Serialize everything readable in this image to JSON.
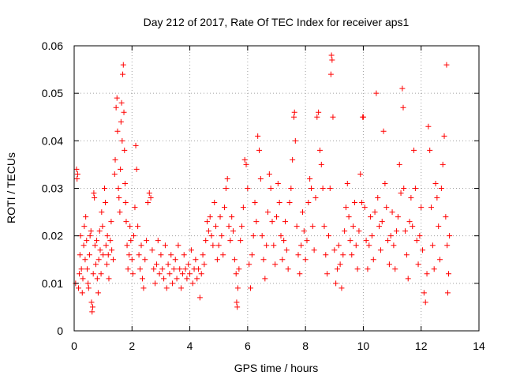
{
  "chart_data": {
    "type": "scatter",
    "title": "Day 212 of 2017, Rate Of TEC Index for receiver aps1",
    "xlabel": "GPS time / hours",
    "ylabel": "ROTI / TECUs",
    "xlim": [
      0,
      14
    ],
    "ylim": [
      0,
      0.06
    ],
    "x_ticks": [
      0,
      2,
      4,
      6,
      8,
      10,
      12,
      14
    ],
    "x_tick_labels": [
      "0",
      "2",
      "4",
      "6",
      "8",
      "10",
      "12",
      "14"
    ],
    "y_ticks": [
      0,
      0.01,
      0.02,
      0.03,
      0.04,
      0.05,
      0.06
    ],
    "y_tick_labels": [
      "0",
      "0.01",
      "0.02",
      "0.03",
      "0.04",
      "0.05",
      "0.06"
    ],
    "grid": true,
    "marker": "plus",
    "color": "#ff0000",
    "series": [
      {
        "name": "ROTI",
        "points": [
          [
            0.05,
            0.01
          ],
          [
            0.08,
            0.034
          ],
          [
            0.1,
            0.032
          ],
          [
            0.12,
            0.033
          ],
          [
            0.15,
            0.009
          ],
          [
            0.18,
            0.012
          ],
          [
            0.2,
            0.016
          ],
          [
            0.22,
            0.02
          ],
          [
            0.25,
            0.013
          ],
          [
            0.28,
            0.008
          ],
          [
            0.3,
            0.011
          ],
          [
            0.33,
            0.018
          ],
          [
            0.35,
            0.022
          ],
          [
            0.38,
            0.015
          ],
          [
            0.4,
            0.024
          ],
          [
            0.43,
            0.019
          ],
          [
            0.45,
            0.013
          ],
          [
            0.48,
            0.01
          ],
          [
            0.5,
            0.009
          ],
          [
            0.53,
            0.016
          ],
          [
            0.55,
            0.02
          ],
          [
            0.58,
            0.021
          ],
          [
            0.6,
            0.006
          ],
          [
            0.62,
            0.004
          ],
          [
            0.64,
            0.005
          ],
          [
            0.66,
            0.012
          ],
          [
            0.68,
            0.029
          ],
          [
            0.7,
            0.028
          ],
          [
            0.72,
            0.018
          ],
          [
            0.75,
            0.014
          ],
          [
            0.78,
            0.019
          ],
          [
            0.8,
            0.011
          ],
          [
            0.83,
            0.008
          ],
          [
            0.85,
            0.015
          ],
          [
            0.88,
            0.021
          ],
          [
            0.9,
            0.017
          ],
          [
            0.93,
            0.012
          ],
          [
            0.95,
            0.025
          ],
          [
            0.98,
            0.022
          ],
          [
            1.0,
            0.016
          ],
          [
            1.05,
            0.03
          ],
          [
            1.08,
            0.027
          ],
          [
            1.1,
            0.018
          ],
          [
            1.13,
            0.014
          ],
          [
            1.15,
            0.02
          ],
          [
            1.18,
            0.016
          ],
          [
            1.2,
            0.011
          ],
          [
            1.25,
            0.019
          ],
          [
            1.28,
            0.023
          ],
          [
            1.3,
            0.017
          ],
          [
            1.35,
            0.015
          ],
          [
            1.4,
            0.033
          ],
          [
            1.42,
            0.036
          ],
          [
            1.45,
            0.047
          ],
          [
            1.48,
            0.049
          ],
          [
            1.5,
            0.042
          ],
          [
            1.53,
            0.03
          ],
          [
            1.55,
            0.028
          ],
          [
            1.58,
            0.025
          ],
          [
            1.6,
            0.034
          ],
          [
            1.62,
            0.044
          ],
          [
            1.64,
            0.048
          ],
          [
            1.66,
            0.04
          ],
          [
            1.68,
            0.054
          ],
          [
            1.7,
            0.056
          ],
          [
            1.72,
            0.046
          ],
          [
            1.74,
            0.038
          ],
          [
            1.76,
            0.031
          ],
          [
            1.78,
            0.027
          ],
          [
            1.8,
            0.023
          ],
          [
            1.83,
            0.018
          ],
          [
            1.86,
            0.013
          ],
          [
            1.9,
            0.016
          ],
          [
            1.93,
            0.022
          ],
          [
            1.96,
            0.019
          ],
          [
            2.0,
            0.015
          ],
          [
            2.03,
            0.012
          ],
          [
            2.06,
            0.02
          ],
          [
            2.1,
            0.026
          ],
          [
            2.13,
            0.039
          ],
          [
            2.16,
            0.034
          ],
          [
            2.2,
            0.022
          ],
          [
            2.24,
            0.016
          ],
          [
            2.28,
            0.013
          ],
          [
            2.32,
            0.018
          ],
          [
            2.36,
            0.011
          ],
          [
            2.4,
            0.009
          ],
          [
            2.45,
            0.015
          ],
          [
            2.5,
            0.019
          ],
          [
            2.55,
            0.027
          ],
          [
            2.6,
            0.029
          ],
          [
            2.65,
            0.028
          ],
          [
            2.7,
            0.017
          ],
          [
            2.75,
            0.013
          ],
          [
            2.8,
            0.01
          ],
          [
            2.85,
            0.014
          ],
          [
            2.9,
            0.019
          ],
          [
            2.95,
            0.012
          ],
          [
            3.0,
            0.016
          ],
          [
            3.05,
            0.013
          ],
          [
            3.1,
            0.011
          ],
          [
            3.15,
            0.018
          ],
          [
            3.2,
            0.009
          ],
          [
            3.25,
            0.014
          ],
          [
            3.3,
            0.012
          ],
          [
            3.35,
            0.016
          ],
          [
            3.4,
            0.01
          ],
          [
            3.45,
            0.013
          ],
          [
            3.5,
            0.015
          ],
          [
            3.55,
            0.011
          ],
          [
            3.6,
            0.018
          ],
          [
            3.65,
            0.013
          ],
          [
            3.7,
            0.009
          ],
          [
            3.75,
            0.012
          ],
          [
            3.8,
            0.016
          ],
          [
            3.85,
            0.013
          ],
          [
            3.9,
            0.011
          ],
          [
            3.95,
            0.014
          ],
          [
            4.0,
            0.012
          ],
          [
            4.05,
            0.017
          ],
          [
            4.1,
            0.01
          ],
          [
            4.15,
            0.013
          ],
          [
            4.2,
            0.015
          ],
          [
            4.25,
            0.011
          ],
          [
            4.3,
            0.013
          ],
          [
            4.35,
            0.007
          ],
          [
            4.4,
            0.012
          ],
          [
            4.45,
            0.016
          ],
          [
            4.5,
            0.014
          ],
          [
            4.55,
            0.019
          ],
          [
            4.6,
            0.023
          ],
          [
            4.65,
            0.021
          ],
          [
            4.7,
            0.024
          ],
          [
            4.75,
            0.02
          ],
          [
            4.8,
            0.018
          ],
          [
            4.85,
            0.027
          ],
          [
            4.9,
            0.022
          ],
          [
            4.95,
            0.015
          ],
          [
            5.0,
            0.018
          ],
          [
            5.05,
            0.024
          ],
          [
            5.1,
            0.02
          ],
          [
            5.15,
            0.016
          ],
          [
            5.2,
            0.026
          ],
          [
            5.25,
            0.03
          ],
          [
            5.3,
            0.032
          ],
          [
            5.35,
            0.022
          ],
          [
            5.4,
            0.019
          ],
          [
            5.45,
            0.024
          ],
          [
            5.5,
            0.021
          ],
          [
            5.55,
            0.015
          ],
          [
            5.6,
            0.012
          ],
          [
            5.62,
            0.006
          ],
          [
            5.64,
            0.005
          ],
          [
            5.66,
            0.009
          ],
          [
            5.7,
            0.013
          ],
          [
            5.75,
            0.019
          ],
          [
            5.8,
            0.022
          ],
          [
            5.85,
            0.026
          ],
          [
            5.9,
            0.036
          ],
          [
            5.95,
            0.035
          ],
          [
            6.0,
            0.03
          ],
          [
            6.05,
            0.014
          ],
          [
            6.1,
            0.009
          ],
          [
            6.15,
            0.016
          ],
          [
            6.2,
            0.02
          ],
          [
            6.25,
            0.027
          ],
          [
            6.3,
            0.023
          ],
          [
            6.35,
            0.041
          ],
          [
            6.4,
            0.038
          ],
          [
            6.45,
            0.032
          ],
          [
            6.5,
            0.02
          ],
          [
            6.55,
            0.015
          ],
          [
            6.6,
            0.011
          ],
          [
            6.65,
            0.018
          ],
          [
            6.7,
            0.025
          ],
          [
            6.75,
            0.033
          ],
          [
            6.8,
            0.03
          ],
          [
            6.85,
            0.023
          ],
          [
            6.9,
            0.018
          ],
          [
            6.95,
            0.014
          ],
          [
            7.0,
            0.024
          ],
          [
            7.05,
            0.031
          ],
          [
            7.1,
            0.027
          ],
          [
            7.15,
            0.02
          ],
          [
            7.2,
            0.015
          ],
          [
            7.25,
            0.019
          ],
          [
            7.3,
            0.023
          ],
          [
            7.35,
            0.017
          ],
          [
            7.4,
            0.013
          ],
          [
            7.45,
            0.027
          ],
          [
            7.5,
            0.03
          ],
          [
            7.55,
            0.036
          ],
          [
            7.6,
            0.045
          ],
          [
            7.62,
            0.046
          ],
          [
            7.65,
            0.04
          ],
          [
            7.7,
            0.022
          ],
          [
            7.75,
            0.016
          ],
          [
            7.8,
            0.012
          ],
          [
            7.85,
            0.018
          ],
          [
            7.9,
            0.025
          ],
          [
            7.95,
            0.021
          ],
          [
            8.0,
            0.015
          ],
          [
            8.05,
            0.019
          ],
          [
            8.1,
            0.027
          ],
          [
            8.15,
            0.032
          ],
          [
            8.2,
            0.03
          ],
          [
            8.25,
            0.022
          ],
          [
            8.3,
            0.017
          ],
          [
            8.35,
            0.028
          ],
          [
            8.4,
            0.045
          ],
          [
            8.45,
            0.046
          ],
          [
            8.5,
            0.038
          ],
          [
            8.55,
            0.035
          ],
          [
            8.6,
            0.03
          ],
          [
            8.65,
            0.022
          ],
          [
            8.7,
            0.016
          ],
          [
            8.75,
            0.012
          ],
          [
            8.8,
            0.02
          ],
          [
            8.85,
            0.03
          ],
          [
            8.88,
            0.054
          ],
          [
            8.9,
            0.058
          ],
          [
            8.92,
            0.057
          ],
          [
            8.95,
            0.045
          ],
          [
            9.0,
            0.017
          ],
          [
            9.05,
            0.01
          ],
          [
            9.1,
            0.013
          ],
          [
            9.15,
            0.018
          ],
          [
            9.2,
            0.014
          ],
          [
            9.25,
            0.009
          ],
          [
            9.3,
            0.016
          ],
          [
            9.35,
            0.021
          ],
          [
            9.4,
            0.026
          ],
          [
            9.45,
            0.031
          ],
          [
            9.5,
            0.024
          ],
          [
            9.55,
            0.019
          ],
          [
            9.6,
            0.016
          ],
          [
            9.65,
            0.022
          ],
          [
            9.7,
            0.027
          ],
          [
            9.75,
            0.018
          ],
          [
            9.8,
            0.013
          ],
          [
            9.85,
            0.021
          ],
          [
            9.9,
            0.033
          ],
          [
            9.95,
            0.027
          ],
          [
            9.98,
            0.045
          ],
          [
            10.0,
            0.045
          ],
          [
            10.05,
            0.026
          ],
          [
            10.1,
            0.019
          ],
          [
            10.15,
            0.013
          ],
          [
            10.2,
            0.018
          ],
          [
            10.25,
            0.024
          ],
          [
            10.3,
            0.02
          ],
          [
            10.35,
            0.015
          ],
          [
            10.4,
            0.025
          ],
          [
            10.45,
            0.05
          ],
          [
            10.5,
            0.028
          ],
          [
            10.55,
            0.022
          ],
          [
            10.6,
            0.017
          ],
          [
            10.65,
            0.023
          ],
          [
            10.7,
            0.042
          ],
          [
            10.75,
            0.031
          ],
          [
            10.8,
            0.026
          ],
          [
            10.85,
            0.019
          ],
          [
            10.9,
            0.014
          ],
          [
            10.95,
            0.02
          ],
          [
            11.0,
            0.025
          ],
          [
            11.05,
            0.018
          ],
          [
            11.1,
            0.013
          ],
          [
            11.15,
            0.021
          ],
          [
            11.2,
            0.024
          ],
          [
            11.25,
            0.035
          ],
          [
            11.3,
            0.029
          ],
          [
            11.35,
            0.051
          ],
          [
            11.38,
            0.047
          ],
          [
            11.4,
            0.03
          ],
          [
            11.45,
            0.021
          ],
          [
            11.5,
            0.016
          ],
          [
            11.55,
            0.011
          ],
          [
            11.6,
            0.023
          ],
          [
            11.65,
            0.028
          ],
          [
            11.7,
            0.022
          ],
          [
            11.75,
            0.038
          ],
          [
            11.8,
            0.03
          ],
          [
            11.85,
            0.019
          ],
          [
            11.9,
            0.014
          ],
          [
            11.95,
            0.02
          ],
          [
            12.0,
            0.026
          ],
          [
            12.05,
            0.017
          ],
          [
            12.1,
            0.008
          ],
          [
            12.15,
            0.006
          ],
          [
            12.2,
            0.012
          ],
          [
            12.25,
            0.043
          ],
          [
            12.3,
            0.038
          ],
          [
            12.35,
            0.026
          ],
          [
            12.4,
            0.018
          ],
          [
            12.45,
            0.013
          ],
          [
            12.5,
            0.031
          ],
          [
            12.55,
            0.028
          ],
          [
            12.6,
            0.022
          ],
          [
            12.65,
            0.015
          ],
          [
            12.7,
            0.03
          ],
          [
            12.75,
            0.035
          ],
          [
            12.8,
            0.041
          ],
          [
            12.85,
            0.024
          ],
          [
            12.88,
            0.056
          ],
          [
            12.9,
            0.018
          ],
          [
            12.92,
            0.008
          ],
          [
            12.95,
            0.012
          ],
          [
            12.98,
            0.02
          ]
        ]
      }
    ]
  }
}
